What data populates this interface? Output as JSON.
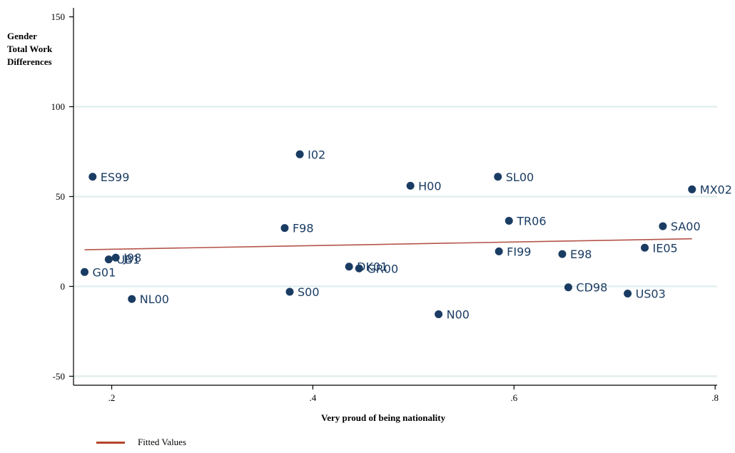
{
  "chart_data": {
    "type": "scatter",
    "ylabel_lines": [
      "Gender",
      "Total Work",
      "Differences"
    ],
    "xlabel": "Very proud of being nationality",
    "xlim": [
      0.162,
      0.802
    ],
    "ylim": [
      -55,
      155
    ],
    "xticks": [
      0.2,
      0.4,
      0.6,
      0.8
    ],
    "xtick_labels": [
      ".2",
      ".4",
      ".6",
      ".8"
    ],
    "yticks": [
      -50,
      0,
      50,
      100,
      150
    ],
    "ytick_labels": [
      "-50",
      "0",
      "50",
      "100",
      "150"
    ],
    "grid": "horizontal",
    "points": [
      {
        "label": "ES99",
        "x": 0.181,
        "y": 61
      },
      {
        "label": "I02",
        "x": 0.387,
        "y": 73.5
      },
      {
        "label": "H00",
        "x": 0.497,
        "y": 56
      },
      {
        "label": "SL00",
        "x": 0.584,
        "y": 61
      },
      {
        "label": "MX02",
        "x": 0.777,
        "y": 54
      },
      {
        "label": "TR06",
        "x": 0.595,
        "y": 36.5
      },
      {
        "label": "SA00",
        "x": 0.748,
        "y": 33.5
      },
      {
        "label": "F98",
        "x": 0.372,
        "y": 32.5
      },
      {
        "label": "IE05",
        "x": 0.73,
        "y": 21.5
      },
      {
        "label": "FI99",
        "x": 0.585,
        "y": 19.5
      },
      {
        "label": "E98",
        "x": 0.648,
        "y": 18
      },
      {
        "label": "J98",
        "x": 0.204,
        "y": 16
      },
      {
        "label": "UB1",
        "x": 0.197,
        "y": 15
      },
      {
        "label": "DK01",
        "x": 0.436,
        "y": 11
      },
      {
        "label": "GR00",
        "x": 0.446,
        "y": 10
      },
      {
        "label": "G01",
        "x": 0.173,
        "y": 8
      },
      {
        "label": "CD98",
        "x": 0.654,
        "y": -0.5
      },
      {
        "label": "S00",
        "x": 0.377,
        "y": -3
      },
      {
        "label": "US03",
        "x": 0.713,
        "y": -4
      },
      {
        "label": "NL00",
        "x": 0.22,
        "y": -7
      },
      {
        "label": "N00",
        "x": 0.525,
        "y": -15.5
      }
    ],
    "fitted_line": {
      "name": "Fitted Values",
      "x": [
        0.173,
        0.777
      ],
      "y": [
        20.4,
        26.5
      ]
    },
    "colors": {
      "points": "#1a3c63",
      "fit": "#b5544a",
      "legend_line": "#b5442a",
      "grid": "#e3eeee"
    }
  }
}
